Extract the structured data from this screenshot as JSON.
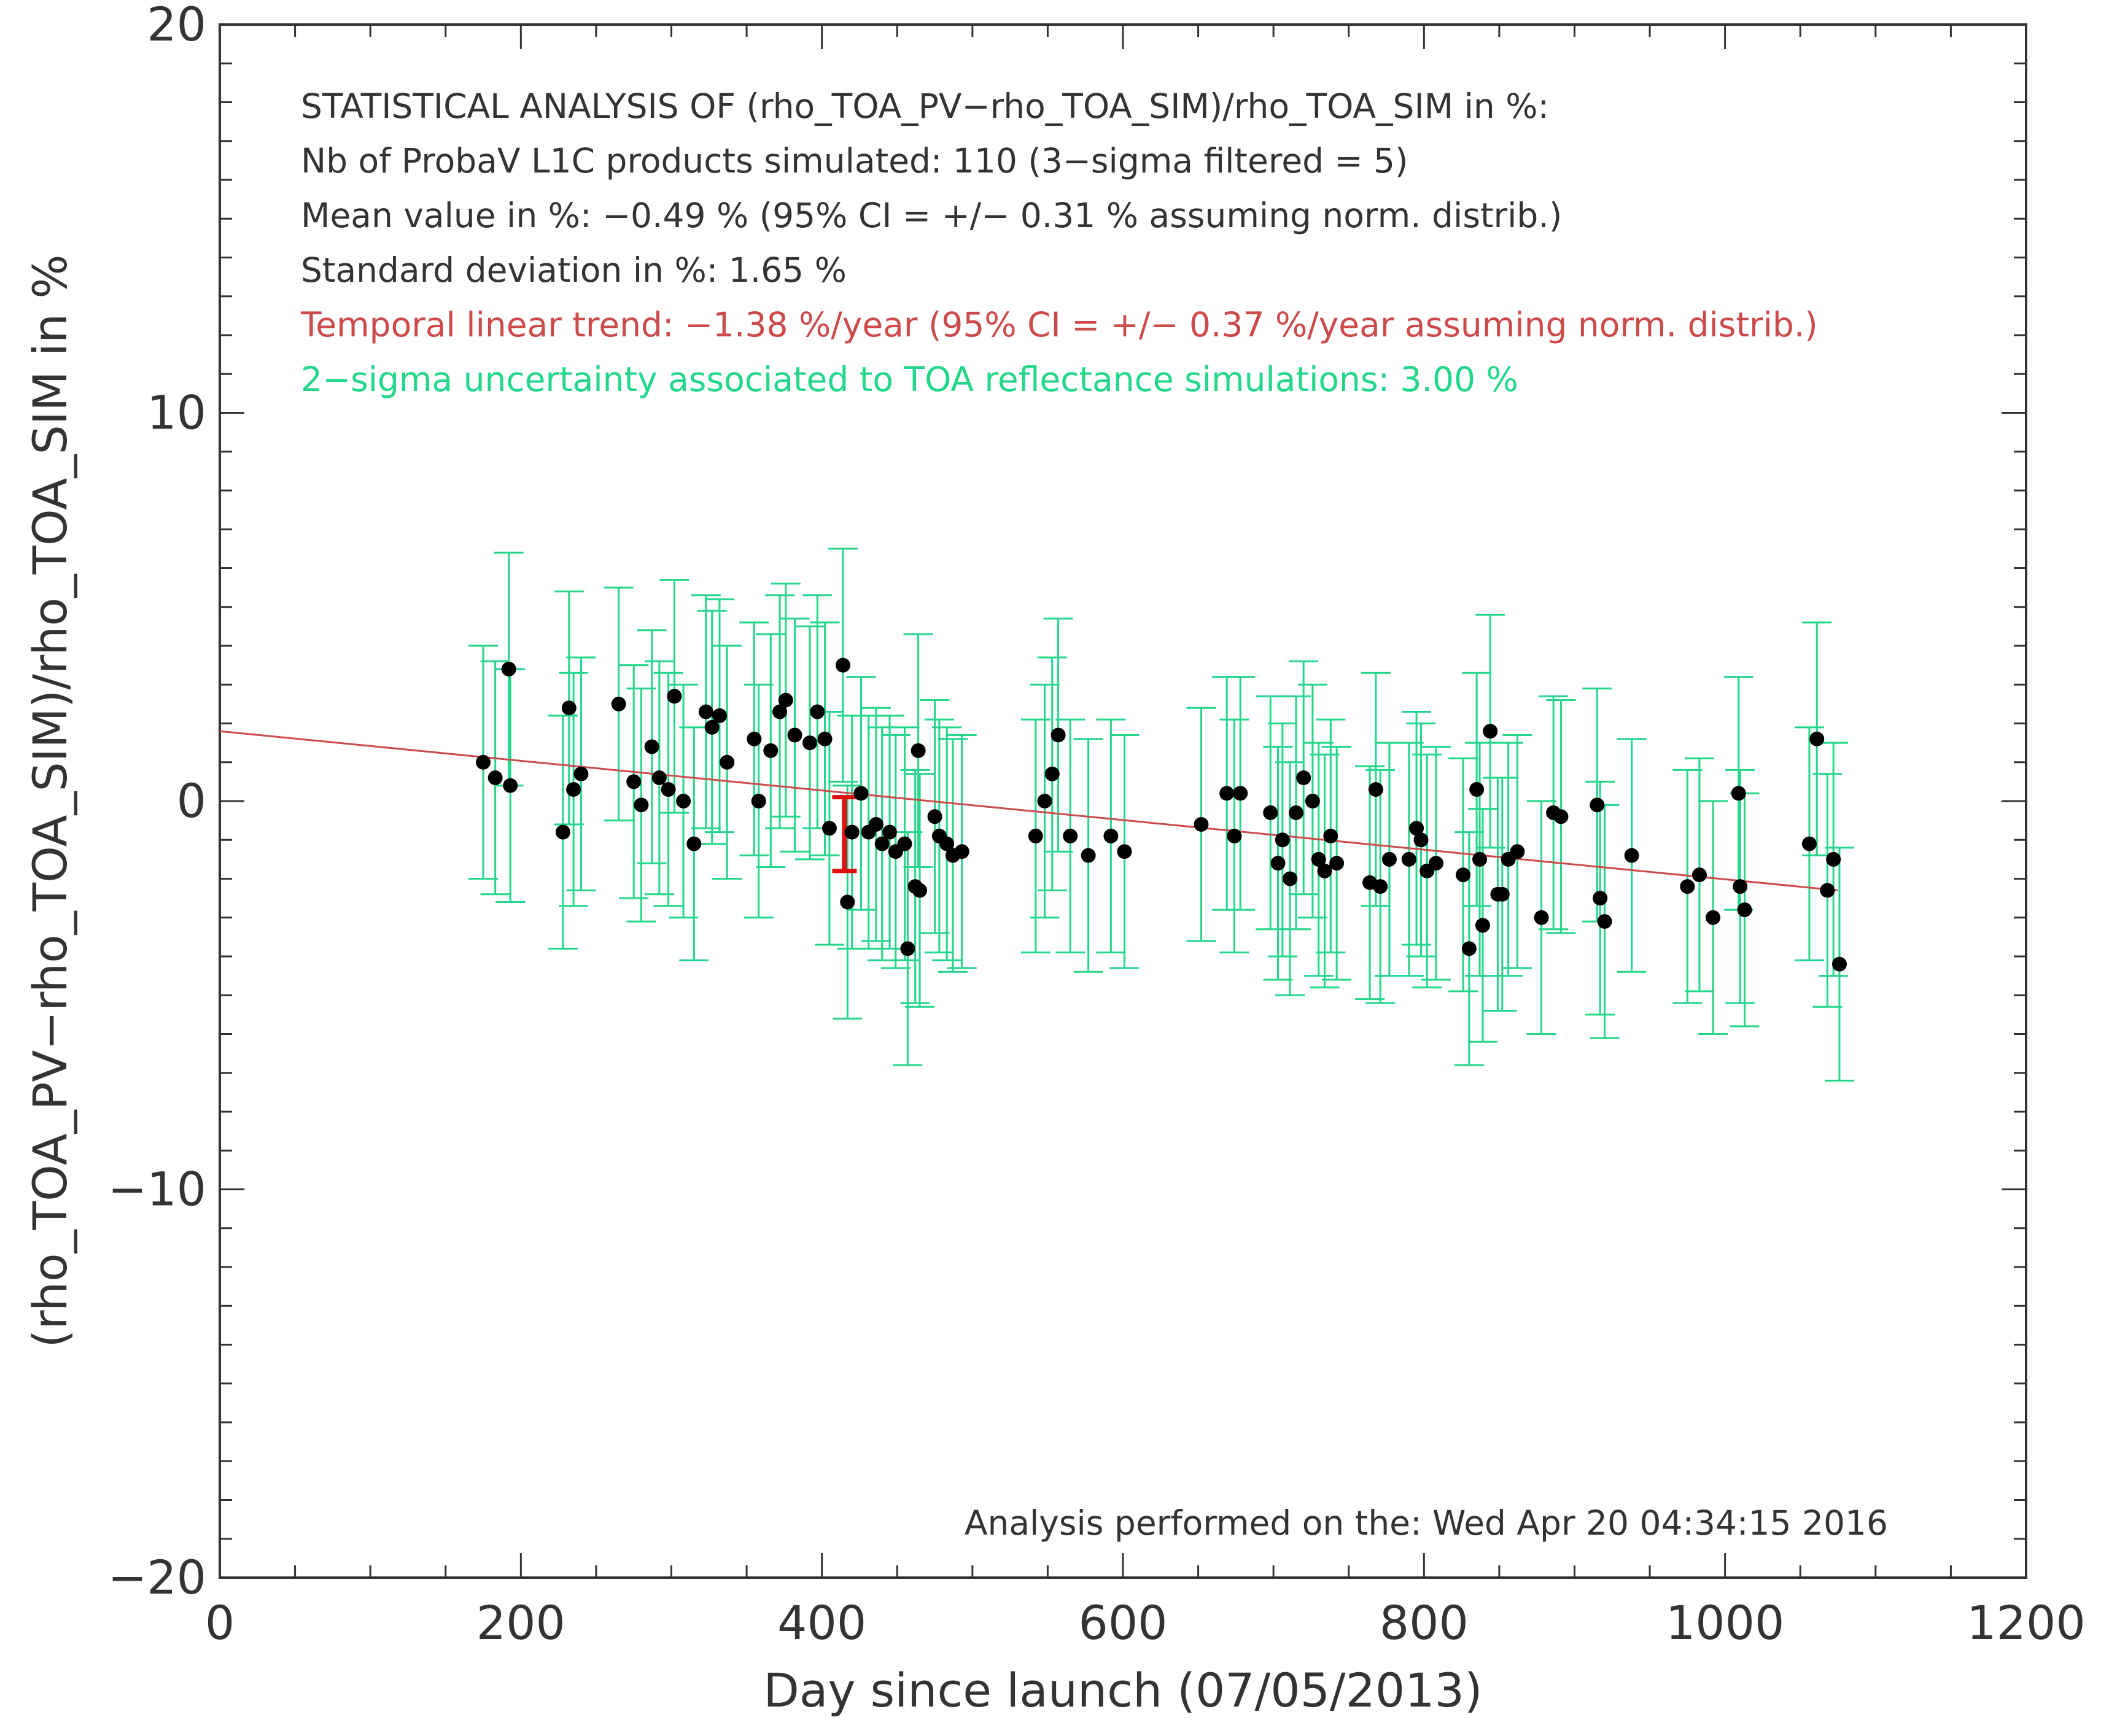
{
  "chart_data": {
    "type": "scatter",
    "xlabel": "Day since launch (07/05/2013)",
    "ylabel": "(rho_TOA_PV−rho_TOA_SIM)/rho_TOA_SIM in %",
    "xlim": [
      0,
      1200
    ],
    "ylim": [
      -20,
      20
    ],
    "xticks": [
      0,
      200,
      400,
      600,
      800,
      1000,
      1200
    ],
    "yticks": [
      -20,
      -10,
      0,
      10,
      20
    ],
    "xtick_labels": [
      "0",
      "200",
      "400",
      "600",
      "800",
      "1000",
      "1200"
    ],
    "ytick_labels": [
      "−20",
      "−10",
      "0",
      "10",
      "20"
    ],
    "grid": false,
    "colors": {
      "points": "#000000",
      "error_bars": "#22d68a",
      "trend": "#cc4a4a",
      "highlight": "#e01010",
      "text": "#333333"
    },
    "annotations": [
      {
        "text": "STATISTICAL ANALYSIS OF (rho_TOA_PV−rho_TOA_SIM)/rho_TOA_SIM in %:",
        "color": "#333333"
      },
      {
        "text": "Nb of ProbaV L1C products simulated:  110 (3−sigma filtered =   5)",
        "color": "#333333"
      },
      {
        "text": "Mean value in %:    −0.49 % (95% CI = +/−  0.31 % assuming norm. distrib.)",
        "color": "#333333"
      },
      {
        "text": "Standard deviation in %:    1.65 %",
        "color": "#333333"
      },
      {
        "text": "Temporal linear trend:  −1.38 %/year (95% CI = +/−  0.37 %/year assuming norm. distrib.)",
        "color": "#cc4a4a"
      },
      {
        "text": "2−sigma uncertainty associated to TOA reflectance simulations:   3.00 %",
        "color": "#22d68a"
      }
    ],
    "footer": "Analysis performed on the: Wed Apr 20 04:34:15 2016",
    "trend_line": {
      "x": [
        0,
        1075
      ],
      "y": [
        1.8,
        -2.3
      ]
    },
    "highlight_bar": {
      "x": 415,
      "y_low": -1.8,
      "y_high": 0.1
    },
    "error_half_width": 3.0,
    "points": {
      "x": [
        175,
        183,
        192,
        193,
        228,
        232,
        235,
        240,
        265,
        275,
        280,
        287,
        292,
        298,
        302,
        308,
        315,
        323,
        327,
        332,
        337,
        355,
        358,
        366,
        372,
        376,
        382,
        392,
        397,
        402,
        405,
        414,
        417,
        420,
        426,
        431,
        436,
        440,
        445,
        449,
        455,
        457,
        462,
        464,
        465,
        475,
        478,
        483,
        487,
        493,
        542,
        548,
        553,
        557,
        565,
        577,
        592,
        601,
        652,
        669,
        674,
        678,
        698,
        703,
        706,
        711,
        715,
        720,
        726,
        730,
        734,
        738,
        742,
        764,
        768,
        771,
        777,
        790,
        795,
        798,
        802,
        808,
        826,
        830,
        835,
        837,
        839,
        844,
        849,
        852,
        856,
        862,
        878,
        886,
        891,
        915,
        917,
        920,
        938,
        975,
        983,
        992,
        1009,
        1010,
        1013,
        1056,
        1061,
        1068,
        1072,
        1076
      ],
      "y": [
        1.0,
        0.6,
        3.4,
        0.4,
        -0.8,
        2.4,
        0.3,
        0.7,
        2.5,
        0.5,
        -0.1,
        1.4,
        0.6,
        0.3,
        2.7,
        0.0,
        -1.1,
        2.3,
        1.9,
        2.2,
        1.0,
        1.6,
        0.0,
        1.3,
        2.3,
        2.6,
        1.7,
        1.5,
        2.3,
        1.6,
        -0.7,
        3.5,
        -2.6,
        -0.8,
        0.2,
        -0.8,
        -0.6,
        -1.1,
        -0.8,
        -1.3,
        -1.1,
        -3.8,
        -2.2,
        1.3,
        -2.3,
        -0.4,
        -0.9,
        -1.1,
        -1.4,
        -1.3,
        -0.9,
        0.0,
        0.7,
        1.7,
        -0.9,
        -1.4,
        -0.9,
        -1.3,
        -0.6,
        0.2,
        -0.9,
        0.2,
        -0.3,
        -1.6,
        -1.0,
        -2.0,
        -0.3,
        0.6,
        0.0,
        -1.5,
        -1.8,
        -0.9,
        -1.6,
        -2.1,
        0.3,
        -2.2,
        -1.5,
        -1.5,
        -0.7,
        -1.0,
        -1.8,
        -1.6,
        -1.9,
        -3.8,
        0.3,
        -1.5,
        -3.2,
        1.8,
        -2.4,
        -2.4,
        -1.5,
        -1.3,
        -3.0,
        -0.3,
        -0.4,
        -0.1,
        -2.5,
        -3.1,
        -1.4,
        -2.2,
        -1.9,
        -3.0,
        0.2,
        -2.2,
        -2.8,
        -1.1,
        1.6,
        -2.3,
        -1.5,
        -4.2
      ]
    }
  }
}
